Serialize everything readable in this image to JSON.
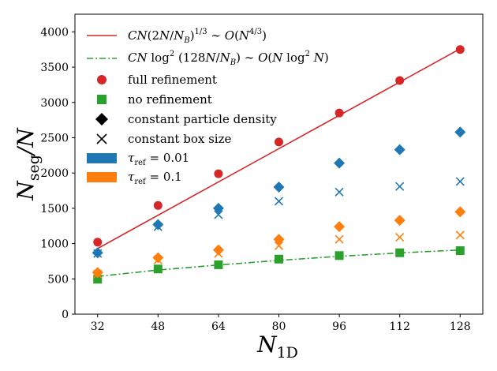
{
  "chart_data": {
    "type": "scatter",
    "xlabel": {
      "main": "N",
      "sub": "1D"
    },
    "ylabel": {
      "main": "N",
      "sub": "seg",
      "suffix": "/N"
    },
    "xlim": [
      26,
      134
    ],
    "ylim": [
      0,
      4250
    ],
    "xticks": [
      32,
      48,
      64,
      80,
      96,
      112,
      128
    ],
    "yticks": [
      0,
      500,
      1000,
      1500,
      2000,
      2500,
      3000,
      3500,
      4000
    ],
    "grid": false,
    "legend_position": "upper-left",
    "x": [
      32,
      48,
      64,
      80,
      96,
      112,
      128
    ],
    "colors": {
      "full_refinement": "#d62728",
      "no_refinement": "#2ca02c",
      "tau_001": "#1f77b4",
      "tau_01": "#ff7f0e",
      "black": "#000000"
    },
    "legend": [
      {
        "key": "fit_full",
        "symbol": "line-solid",
        "color": "#d62728",
        "text": "CN(2N/N_B)^{1/3} ~ O(N^{4/3})"
      },
      {
        "key": "fit_none",
        "symbol": "line-dashdot",
        "color": "#2ca02c",
        "text": "CN log^2(128N/N_B) ~ O(N log^2 N)"
      },
      {
        "key": "full",
        "symbol": "circle",
        "color": "#d62728",
        "text": "full refinement"
      },
      {
        "key": "none",
        "symbol": "square",
        "color": "#2ca02c",
        "text": "no refinement"
      },
      {
        "key": "cpd",
        "symbol": "diamond",
        "color": "#000000",
        "text": "constant particle density"
      },
      {
        "key": "cbs",
        "symbol": "cross",
        "color": "#000000",
        "text": "constant box size"
      },
      {
        "key": "tau001",
        "symbol": "patch",
        "color": "#1f77b4",
        "text": "τ_ref = 0.01"
      },
      {
        "key": "tau01",
        "symbol": "patch",
        "color": "#ff7f0e",
        "text": "τ_ref = 0.1"
      }
    ],
    "series": [
      {
        "key": "fit_full",
        "kind": "line",
        "style": "solid",
        "color": "#d62728",
        "x": [
          32,
          128
        ],
        "values": [
          930,
          3760
        ]
      },
      {
        "key": "fit_none",
        "kind": "line",
        "style": "dashdot",
        "color": "#2ca02c",
        "x": [
          32,
          48,
          64,
          80,
          96,
          112,
          128
        ],
        "values": [
          535,
          625,
          697,
          762,
          820,
          868,
          910
        ]
      },
      {
        "key": "full_refinement",
        "kind": "marker",
        "marker": "circle",
        "color": "#d62728",
        "values": [
          1020,
          1540,
          1990,
          2440,
          2850,
          3310,
          3750
        ]
      },
      {
        "key": "no_refinement",
        "kind": "marker",
        "marker": "square",
        "color": "#2ca02c",
        "values": [
          495,
          640,
          700,
          780,
          830,
          870,
          900
        ]
      },
      {
        "key": "tau001_cpd",
        "kind": "marker",
        "marker": "diamond",
        "color": "#1f77b4",
        "values": [
          870,
          1270,
          1500,
          1800,
          2140,
          2330,
          2580
        ]
      },
      {
        "key": "tau001_cbs",
        "kind": "marker",
        "marker": "cross",
        "color": "#1f77b4",
        "values": [
          860,
          1240,
          1410,
          1600,
          1730,
          1810,
          1880
        ]
      },
      {
        "key": "tau01_cpd",
        "kind": "marker",
        "marker": "diamond",
        "color": "#ff7f0e",
        "values": [
          590,
          800,
          910,
          1060,
          1240,
          1330,
          1450
        ]
      },
      {
        "key": "tau01_cbs",
        "kind": "marker",
        "marker": "cross",
        "color": "#ff7f0e",
        "values": [
          570,
          770,
          860,
          970,
          1060,
          1090,
          1120
        ]
      }
    ]
  }
}
